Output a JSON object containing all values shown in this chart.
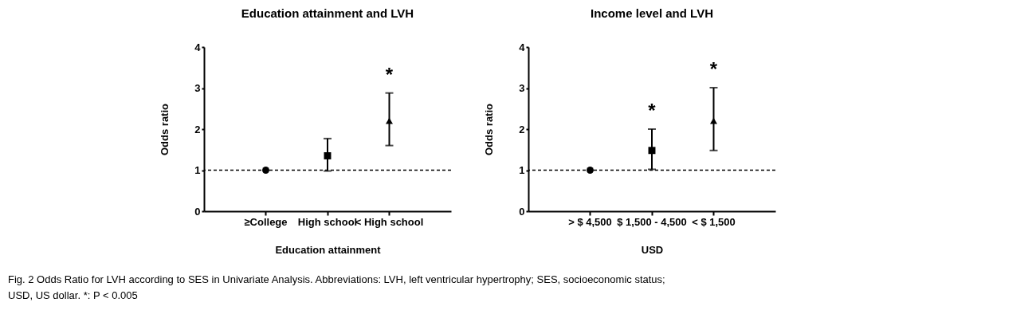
{
  "chart_data": [
    {
      "type": "scatter",
      "title": "Education attainment and LVH",
      "xlabel": "Education attainment",
      "ylabel": "Odds ratio",
      "categories": [
        "≥College",
        "High school",
        "< High school"
      ],
      "series": [
        {
          "color": "#000000",
          "marker": "circle",
          "values": [
            1.0,
            null,
            null
          ],
          "errors": [
            null,
            null,
            null
          ]
        },
        {
          "color": "#000000",
          "marker": "square",
          "values": [
            null,
            1.35,
            null
          ],
          "errors": [
            null,
            [
              0.98,
              1.77
            ],
            null
          ]
        },
        {
          "color": "#000000",
          "marker": "triangle",
          "values": [
            null,
            null,
            2.2
          ],
          "errors": [
            null,
            null,
            [
              1.6,
              2.88
            ]
          ],
          "value_labels": [
            null,
            null,
            "*"
          ]
        }
      ],
      "ylim": [
        0,
        4
      ],
      "yticks": [
        0,
        1,
        2,
        3,
        4
      ],
      "grid": false,
      "ref_lines": [
        {
          "axis": "y",
          "value": 1,
          "line_style": "dashed",
          "color": "#000000"
        }
      ],
      "annotations": [
        "Fig. 2 Odds Ratio for LVH according to SES in Univariate Analysis. Abbreviations: LVH, left ventricular hypertrophy; SES, socioeconomic status;",
        "USD, US dollar. *: P < 0.005"
      ]
    },
    {
      "type": "scatter",
      "title": "Income level and LVH",
      "xlabel": "USD",
      "ylabel": "Odds ratio",
      "categories": [
        "> $ 4,500",
        "$ 1,500 - 4,500",
        "< $ 1,500"
      ],
      "series": [
        {
          "color": "#000000",
          "marker": "circle",
          "values": [
            1.0,
            null,
            null
          ],
          "errors": [
            null,
            null,
            null
          ]
        },
        {
          "color": "#000000",
          "marker": "square",
          "values": [
            null,
            1.48,
            null
          ],
          "errors": [
            null,
            [
              1.02,
              2.0
            ],
            null
          ],
          "value_labels": [
            null,
            "*",
            null
          ]
        },
        {
          "color": "#000000",
          "marker": "triangle",
          "values": [
            null,
            null,
            2.2
          ],
          "errors": [
            null,
            null,
            [
              1.48,
              3.01
            ]
          ],
          "value_labels": [
            null,
            null,
            "*"
          ]
        }
      ],
      "ylim": [
        0,
        4
      ],
      "yticks": [
        0,
        1,
        2,
        3,
        4
      ],
      "grid": false,
      "ref_lines": [
        {
          "axis": "y",
          "value": 1,
          "line_style": "dashed",
          "color": "#000000"
        }
      ]
    }
  ]
}
